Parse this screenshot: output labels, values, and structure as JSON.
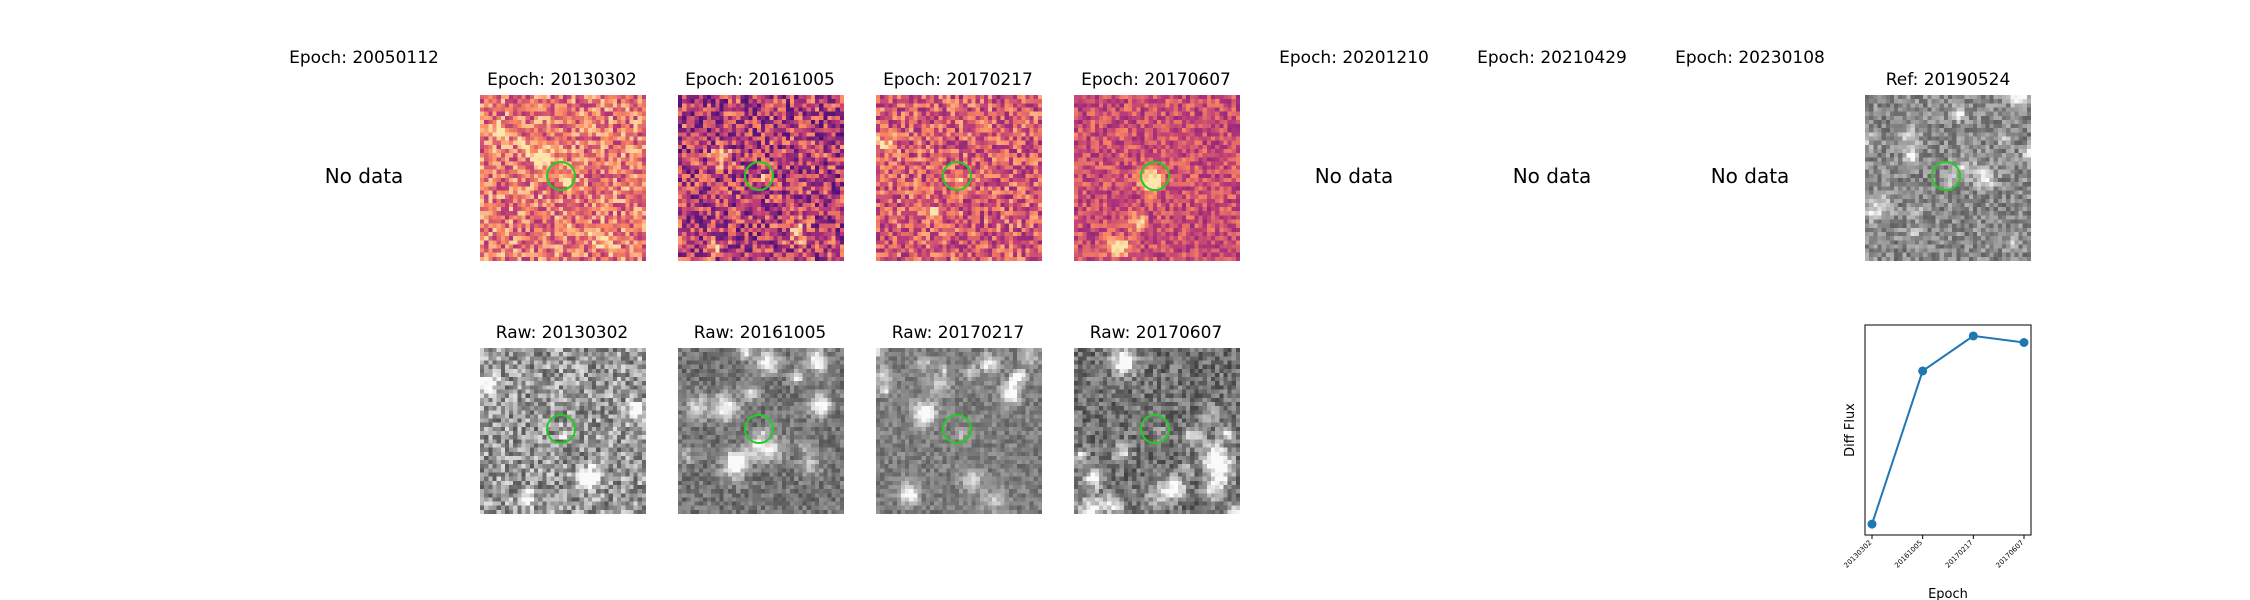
{
  "top_row": {
    "panels": [
      {
        "title": "Epoch: 20050112",
        "status": "No data"
      },
      {
        "title": "Epoch: 20130302"
      },
      {
        "title": "Epoch: 20161005"
      },
      {
        "title": "Epoch: 20170217"
      },
      {
        "title": "Epoch: 20170607"
      },
      {
        "title": "Epoch: 20201210",
        "status": "No data"
      },
      {
        "title": "Epoch: 20210429",
        "status": "No data"
      },
      {
        "title": "Epoch: 20230108",
        "status": "No data"
      }
    ],
    "reference": {
      "title": "Ref: 20190524"
    }
  },
  "bottom_row": {
    "panels": [
      {
        "title": "Raw: 20130302"
      },
      {
        "title": "Raw: 20161005"
      },
      {
        "title": "Raw: 20170217"
      },
      {
        "title": "Raw: 20170607"
      }
    ]
  },
  "colors": {
    "aperture": "#22cc22",
    "series": "#1f77b4"
  },
  "chart_data": {
    "type": "line",
    "categories": [
      "20130302",
      "20161005",
      "20170217",
      "20170607"
    ],
    "values": [
      0.0,
      0.7,
      0.86,
      0.83
    ],
    "xlabel": "Epoch",
    "ylabel": "Diff Flux",
    "ylim": [
      -0.05,
      0.91
    ],
    "marker": "circle",
    "grid": false
  }
}
